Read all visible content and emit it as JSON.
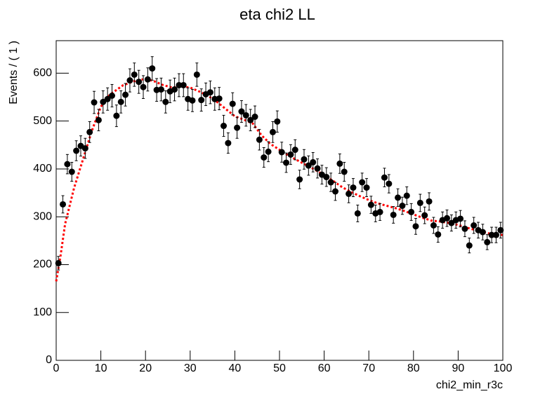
{
  "chart_data": {
    "type": "errorbar",
    "title": "eta chi2 LL",
    "xlabel": "chi2_min_r3c",
    "ylabel": "Events / ( 1 )",
    "xlim": [
      0,
      100
    ],
    "ylim": [
      0,
      668
    ],
    "xticks": [
      0,
      10,
      20,
      30,
      40,
      50,
      60,
      70,
      80,
      90,
      100
    ],
    "yticks": [
      0,
      100,
      200,
      300,
      400,
      500,
      600
    ],
    "color": "#000000",
    "x": [
      0.5,
      1.5,
      2.5,
      3.5,
      4.5,
      5.5,
      6.5,
      7.5,
      8.5,
      9.5,
      10.5,
      11.5,
      12.5,
      13.5,
      14.5,
      15.5,
      16.5,
      17.5,
      18.5,
      19.5,
      20.5,
      21.5,
      22.5,
      23.5,
      24.5,
      25.5,
      26.5,
      27.5,
      28.5,
      29.5,
      30.5,
      31.5,
      32.5,
      33.5,
      34.5,
      35.5,
      36.5,
      37.5,
      38.5,
      39.5,
      40.5,
      41.5,
      42.5,
      43.5,
      44.5,
      45.5,
      46.5,
      47.5,
      48.5,
      49.5,
      50.5,
      51.5,
      52.5,
      53.5,
      54.5,
      55.5,
      56.5,
      57.5,
      58.5,
      59.5,
      60.5,
      61.5,
      62.5,
      63.5,
      64.5,
      65.5,
      66.5,
      67.5,
      68.5,
      69.5,
      70.5,
      71.5,
      72.5,
      73.5,
      74.5,
      75.5,
      76.5,
      77.5,
      78.5,
      79.5,
      80.5,
      81.5,
      82.5,
      83.5,
      84.5,
      85.5,
      86.5,
      87.5,
      88.5,
      89.5,
      90.5,
      91.5,
      92.5,
      93.5,
      94.5,
      95.5,
      96.5,
      97.5,
      98.5,
      99.5
    ],
    "values": [
      203,
      326,
      410,
      394,
      438,
      448,
      443,
      477,
      539,
      502,
      540,
      546,
      553,
      511,
      540,
      555,
      585,
      597,
      582,
      571,
      587,
      610,
      565,
      566,
      540,
      562,
      566,
      575,
      575,
      546,
      543,
      597,
      544,
      556,
      560,
      546,
      547,
      490,
      454,
      536,
      486,
      520,
      512,
      502,
      509,
      461,
      424,
      436,
      477,
      499,
      435,
      413,
      430,
      440,
      378,
      420,
      407,
      414,
      401,
      388,
      383,
      372,
      353,
      411,
      394,
      348,
      361,
      307,
      372,
      361,
      325,
      307,
      310,
      382,
      369,
      304,
      340,
      323,
      344,
      310,
      280,
      329,
      303,
      332,
      282,
      263,
      293,
      297,
      287,
      293,
      296,
      275,
      240,
      282,
      272,
      268,
      247,
      262,
      262,
      272
    ],
    "errors": [
      14.2,
      18.1,
      20.2,
      19.8,
      20.9,
      21.2,
      21,
      21.8,
      23.2,
      22.4,
      23.2,
      23.4,
      23.5,
      22.6,
      23.2,
      23.6,
      24.2,
      24.4,
      24.1,
      23.9,
      24.2,
      24.7,
      23.8,
      23.8,
      23.2,
      23.7,
      23.8,
      24,
      24,
      23.4,
      23.3,
      24.4,
      23.3,
      23.6,
      23.7,
      23.4,
      23.4,
      22.1,
      21.3,
      23.2,
      22,
      22.8,
      22.6,
      22.4,
      22.6,
      21.5,
      20.6,
      20.9,
      21.8,
      22.3,
      20.9,
      20.3,
      20.7,
      21,
      19.4,
      20.5,
      20.2,
      20.3,
      20,
      19.7,
      19.6,
      19.3,
      18.8,
      20.3,
      19.8,
      18.7,
      19,
      17.5,
      19.3,
      19,
      18,
      17.5,
      17.6,
      19.5,
      19.2,
      17.4,
      18.4,
      18,
      18.5,
      17.6,
      16.7,
      18.1,
      17.4,
      18.2,
      16.8,
      16.2,
      17.1,
      17.2,
      16.9,
      17.1,
      17.2,
      16.6,
      15.5,
      16.8,
      16.5,
      16.4,
      15.7,
      16.2,
      16.2,
      16.5
    ],
    "fit": {
      "color": "#ff0000",
      "x": [
        0,
        1,
        2,
        4,
        6,
        8,
        10,
        12,
        15,
        18,
        20,
        22,
        24,
        26,
        28,
        30,
        32,
        34,
        36,
        38,
        40,
        42,
        44,
        46,
        48,
        50,
        52,
        54,
        56,
        58,
        60,
        62,
        64,
        66,
        68,
        70,
        72,
        74,
        76,
        78,
        80,
        82,
        84,
        86,
        88,
        90,
        92,
        94,
        96,
        98,
        100
      ],
      "values": [
        165,
        220,
        285,
        360,
        420,
        480,
        530,
        555,
        575,
        585,
        588,
        583,
        575,
        570,
        572,
        570,
        562,
        553,
        540,
        525,
        510,
        503,
        495,
        470,
        452,
        440,
        428,
        418,
        408,
        398,
        387,
        375,
        362,
        352,
        343,
        335,
        328,
        323,
        318,
        312,
        305,
        298,
        292,
        290,
        287,
        283,
        277,
        272,
        267,
        263,
        262
      ]
    }
  }
}
